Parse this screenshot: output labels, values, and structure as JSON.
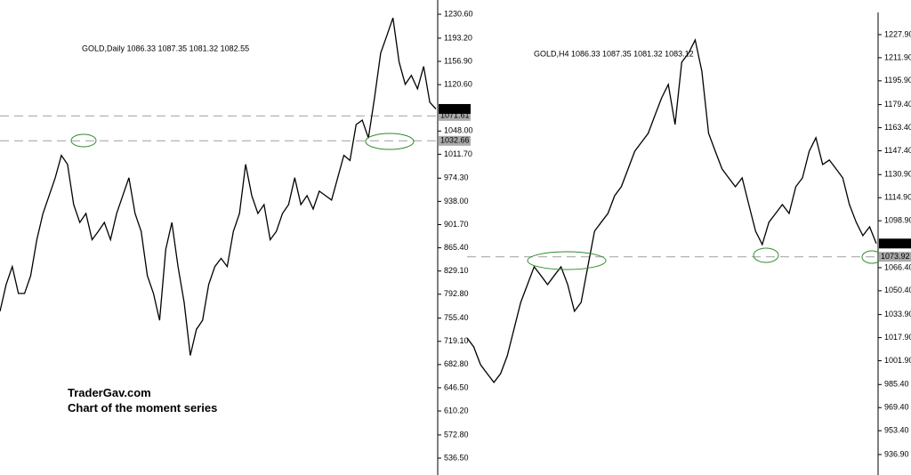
{
  "chart_data": [
    {
      "type": "line",
      "title": "GOLD,Daily  1086.33 1087.35 1081.32 1082.55",
      "annotations": [
        "TraderGav.com",
        "Chart of the moment series"
      ],
      "color": "#000000",
      "values": [
        766,
        808,
        836,
        794,
        794,
        822,
        878,
        919,
        947,
        975,
        1010,
        996,
        933,
        905,
        919,
        878,
        891,
        905,
        878,
        919,
        947,
        975,
        919,
        891,
        822,
        794,
        752,
        863,
        905,
        836,
        780,
        697,
        738,
        752,
        808,
        836,
        849,
        836,
        891,
        919,
        996,
        947,
        919,
        933,
        878,
        891,
        919,
        933,
        975,
        933,
        947,
        926,
        954,
        947,
        940,
        975,
        1010,
        1002,
        1058,
        1065,
        1037,
        1100,
        1170,
        1197,
        1225,
        1156,
        1121,
        1135,
        1114,
        1149,
        1093,
        1082.55
      ],
      "ylim": [
        510.1,
        1252.9
      ],
      "yticks": [
        {
          "value": 1230.6,
          "label": "1230.60"
        },
        {
          "value": 1193.2,
          "label": "1193.20"
        },
        {
          "value": 1156.9,
          "label": "1156.90"
        },
        {
          "value": 1120.6,
          "label": "1120.60"
        },
        {
          "value": 1048.0,
          "label": "1048.00"
        },
        {
          "value": 1011.7,
          "label": "1011.70"
        },
        {
          "value": 974.3,
          "label": "974.30"
        },
        {
          "value": 938.0,
          "label": "938.00"
        },
        {
          "value": 901.7,
          "label": "901.70"
        },
        {
          "value": 865.4,
          "label": "865.40"
        },
        {
          "value": 829.1,
          "label": "829.10"
        },
        {
          "value": 792.8,
          "label": "792.80"
        },
        {
          "value": 755.4,
          "label": "755.40"
        },
        {
          "value": 719.1,
          "label": "719.10"
        },
        {
          "value": 682.8,
          "label": "682.80"
        },
        {
          "value": 646.5,
          "label": "646.50"
        },
        {
          "value": 610.2,
          "label": "610.20"
        },
        {
          "value": 572.8,
          "label": "572.80"
        },
        {
          "value": 536.5,
          "label": "536.50"
        }
      ],
      "levels": [
        1071.61,
        1032.66
      ],
      "level_color": "#aaaaaa",
      "last_price": 1082.55
    },
    {
      "type": "line",
      "title": "GOLD,H4  1086.33 1087.35 1081.32 1083.12",
      "color": "#000000",
      "values": [
        1017.7,
        1011.5,
        999.2,
        993,
        986.9,
        993,
        1005.3,
        1023.9,
        1042.3,
        1054.7,
        1067,
        1060.9,
        1054.7,
        1060.9,
        1067,
        1054.7,
        1036.2,
        1042.3,
        1067,
        1091.7,
        1097.9,
        1104,
        1116.3,
        1122.5,
        1134.8,
        1147.1,
        1153.3,
        1159.5,
        1171.8,
        1184.1,
        1193.4,
        1165.6,
        1208.8,
        1215,
        1224.2,
        1202.6,
        1159.5,
        1147.1,
        1134.8,
        1128.6,
        1122.5,
        1128.6,
        1110.1,
        1091.7,
        1082.4,
        1097.9,
        1104,
        1110.1,
        1104,
        1122.5,
        1128.6,
        1147.1,
        1156.4,
        1137.9,
        1141,
        1134.8,
        1128.6,
        1110.1,
        1097.9,
        1088.6,
        1094.7,
        1083.12
      ],
      "ylim": [
        922.7,
        1251.9
      ],
      "yticks": [
        {
          "value": 1227.9,
          "label": "1227.90"
        },
        {
          "value": 1211.9,
          "label": "1211.90"
        },
        {
          "value": 1195.9,
          "label": "1195.90"
        },
        {
          "value": 1179.4,
          "label": "1179.40"
        },
        {
          "value": 1163.4,
          "label": "1163.40"
        },
        {
          "value": 1147.4,
          "label": "1147.40"
        },
        {
          "value": 1130.9,
          "label": "1130.90"
        },
        {
          "value": 1114.9,
          "label": "1114.90"
        },
        {
          "value": 1098.9,
          "label": "1098.90"
        },
        {
          "value": 1066.4,
          "label": "1066.40"
        },
        {
          "value": 1050.4,
          "label": "1050.40"
        },
        {
          "value": 1033.9,
          "label": "1033.90"
        },
        {
          "value": 1017.9,
          "label": "1017.90"
        },
        {
          "value": 1001.9,
          "label": "1001.90"
        },
        {
          "value": 985.4,
          "label": "985.40"
        },
        {
          "value": 969.4,
          "label": "969.40"
        },
        {
          "value": 953.4,
          "label": "953.40"
        },
        {
          "value": 936.9,
          "label": "936.90"
        }
      ],
      "levels": [
        1073.92
      ],
      "level_color": "#aaaaaa",
      "last_price": 1083.12
    }
  ]
}
